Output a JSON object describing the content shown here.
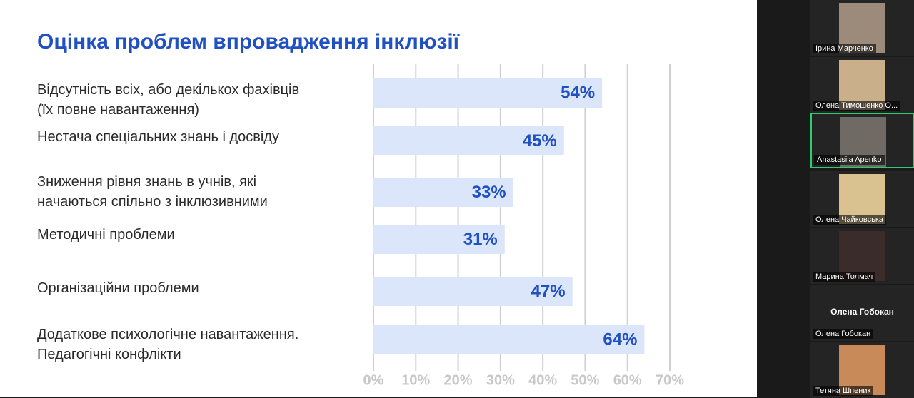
{
  "chart_data": {
    "type": "hbar",
    "title": "Оцінка проблем впровадження інклюзії",
    "categories": [
      "Відсутність всіх, або декількох фахівців\n(їх повне навантаження)",
      "Нестача спеціальних знань і досвіду",
      "Зниження рівня знань в учнів, які\nначаються спільно з інклюзивними",
      "Методичні проблеми",
      "Організаційни проблеми",
      "Додаткове психологічне навантаження.\nПедагогічні конфлікти"
    ],
    "values": [
      54,
      45,
      33,
      31,
      47,
      64
    ],
    "value_labels": [
      "54%",
      "45%",
      "33%",
      "31%",
      "47%",
      "64%"
    ],
    "color": "#dbe6fb",
    "label_color": "#2150c2",
    "xlim": [
      0,
      70
    ],
    "xticks": [
      {
        "value": 0,
        "label": "0%"
      },
      {
        "value": 10,
        "label": "10%"
      },
      {
        "value": 20,
        "label": "20%"
      },
      {
        "value": 30,
        "label": "30%"
      },
      {
        "value": 40,
        "label": "40%"
      },
      {
        "value": 50,
        "label": "50%"
      },
      {
        "value": 60,
        "label": "60%"
      },
      {
        "value": 70,
        "label": "70%"
      }
    ],
    "grid": true
  },
  "participants": [
    {
      "name": "Ірина Марченко"
    },
    {
      "name": "Олена Тимошенко О..."
    },
    {
      "name": "Anastasiia Apenko"
    },
    {
      "name": "Олена Чайковська"
    },
    {
      "name": "Марина Толмач"
    },
    {
      "name": "Олена Гобокан",
      "tile_text": "Олена Гобокан"
    },
    {
      "name": "Тетяна Шпеник"
    }
  ]
}
